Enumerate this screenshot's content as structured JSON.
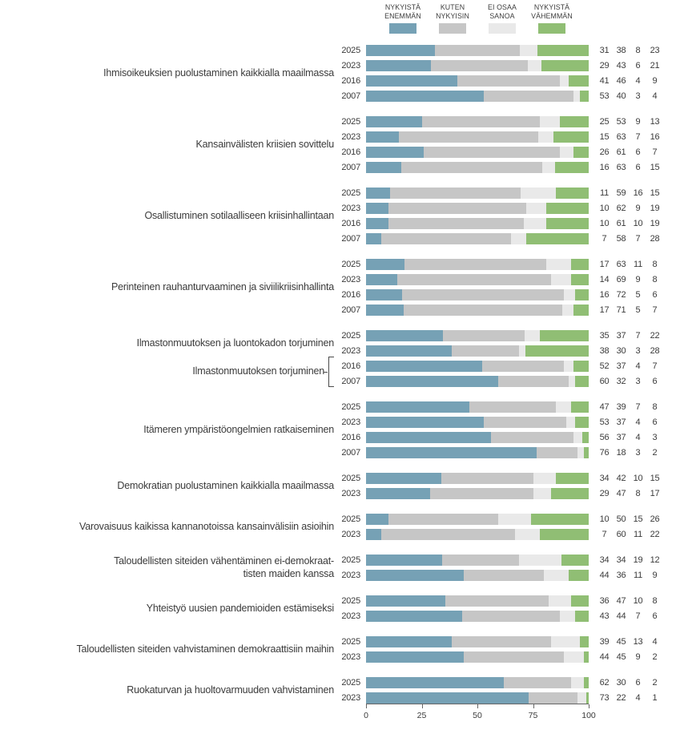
{
  "legend": {
    "items": [
      {
        "label": "NYKYISTÄ\nENEMMÄN",
        "color": "#76a1b5"
      },
      {
        "label": "KUTEN\nNYKYISIN",
        "color": "#c6c6c6"
      },
      {
        "label": "EI OSAA\nSANOA",
        "color": "#e9e9e9"
      },
      {
        "label": "NYKYISTÄ\nVÄHEMMÄN",
        "color": "#90be74"
      }
    ]
  },
  "axis": {
    "ticks": [
      0,
      25,
      50,
      75,
      100
    ]
  },
  "chart_data": {
    "type": "bar",
    "stacked": true,
    "orientation": "horizontal",
    "xlim": [
      0,
      100
    ],
    "series": [
      "NYKYISTÄ ENEMMÄN",
      "KUTEN NYKYISIN",
      "EI OSAA SANOA",
      "NYKYISTÄ VÄHEMMÄN"
    ],
    "segment_keys": [
      "nykyista-enemman",
      "kuten-nykyisin",
      "ei-osaa-sanoa",
      "nykyista-vahemman"
    ],
    "segment_colors": [
      "#76a1b5",
      "#c6c6c6",
      "#e9e9e9",
      "#90be74"
    ],
    "groups": [
      {
        "label": "Ihmisoikeuksien puolustaminen kaikkialla maailmassa",
        "rows": [
          {
            "year": "2025",
            "values": [
              31,
              38,
              8,
              23
            ]
          },
          {
            "year": "2023",
            "values": [
              29,
              43,
              6,
              21
            ]
          },
          {
            "year": "2016",
            "values": [
              41,
              46,
              4,
              9
            ]
          },
          {
            "year": "2007",
            "values": [
              53,
              40,
              3,
              4
            ]
          }
        ]
      },
      {
        "label": "Kansainvälisten kriisien sovittelu",
        "rows": [
          {
            "year": "2025",
            "values": [
              25,
              53,
              9,
              13
            ]
          },
          {
            "year": "2023",
            "values": [
              15,
              63,
              7,
              16
            ]
          },
          {
            "year": "2016",
            "values": [
              26,
              61,
              6,
              7
            ]
          },
          {
            "year": "2007",
            "values": [
              16,
              63,
              6,
              15
            ]
          }
        ]
      },
      {
        "label": "Osallistuminen sotilaalliseen kriisinhallintaan",
        "rows": [
          {
            "year": "2025",
            "values": [
              11,
              59,
              16,
              15
            ]
          },
          {
            "year": "2023",
            "values": [
              10,
              62,
              9,
              19
            ]
          },
          {
            "year": "2016",
            "values": [
              10,
              61,
              10,
              19
            ]
          },
          {
            "year": "2007",
            "values": [
              7,
              58,
              7,
              28
            ]
          }
        ]
      },
      {
        "label": "Perinteinen rauhanturvaaminen ja siviilikriisinhallinta",
        "rows": [
          {
            "year": "2025",
            "values": [
              17,
              63,
              11,
              8
            ]
          },
          {
            "year": "2023",
            "values": [
              14,
              69,
              9,
              8
            ]
          },
          {
            "year": "2016",
            "values": [
              16,
              72,
              5,
              6
            ]
          },
          {
            "year": "2007",
            "values": [
              17,
              71,
              5,
              7
            ]
          }
        ]
      },
      {
        "label": "Ilmastonmuutoksen ja luontokadon torjuminen",
        "sub_label": "Ilmastonmuutoksen torjuminen",
        "rows": [
          {
            "year": "2025",
            "values": [
              35,
              37,
              7,
              22
            ]
          },
          {
            "year": "2023",
            "values": [
              38,
              30,
              3,
              28
            ]
          },
          {
            "year": "2016",
            "values": [
              52,
              37,
              4,
              7
            ]
          },
          {
            "year": "2007",
            "values": [
              60,
              32,
              3,
              6
            ]
          }
        ]
      },
      {
        "label": "Itämeren ympäristöongelmien ratkaiseminen",
        "rows": [
          {
            "year": "2025",
            "values": [
              47,
              39,
              7,
              8
            ]
          },
          {
            "year": "2023",
            "values": [
              53,
              37,
              4,
              6
            ]
          },
          {
            "year": "2016",
            "values": [
              56,
              37,
              4,
              3
            ]
          },
          {
            "year": "2007",
            "values": [
              76,
              18,
              3,
              2
            ]
          }
        ]
      },
      {
        "label": "Demokratian puolustaminen kaikkialla maailmassa",
        "rows": [
          {
            "year": "2025",
            "values": [
              34,
              42,
              10,
              15
            ]
          },
          {
            "year": "2023",
            "values": [
              29,
              47,
              8,
              17
            ]
          }
        ]
      },
      {
        "label": "Varovaisuus kaikissa kannanotoissa kansainvälisiin asioihin",
        "rows": [
          {
            "year": "2025",
            "values": [
              10,
              50,
              15,
              26
            ]
          },
          {
            "year": "2023",
            "values": [
              7,
              60,
              11,
              22
            ]
          }
        ]
      },
      {
        "label": "Taloudellisten siteiden vähentäminen ei-demokraat-\ntisten maiden kanssa",
        "rows": [
          {
            "year": "2025",
            "values": [
              34,
              34,
              19,
              12
            ]
          },
          {
            "year": "2023",
            "values": [
              44,
              36,
              11,
              9
            ]
          }
        ]
      },
      {
        "label": "Yhteistyö uusien pandemioiden estämiseksi",
        "rows": [
          {
            "year": "2025",
            "values": [
              36,
              47,
              10,
              8
            ]
          },
          {
            "year": "2023",
            "values": [
              43,
              44,
              7,
              6
            ]
          }
        ]
      },
      {
        "label": "Taloudellisten siteiden vahvistaminen demokraattisiin maihin",
        "rows": [
          {
            "year": "2025",
            "values": [
              39,
              45,
              13,
              4
            ]
          },
          {
            "year": "2023",
            "values": [
              44,
              45,
              9,
              2
            ]
          }
        ]
      },
      {
        "label": "Ruokaturvan ja huoltovarmuuden vahvistaminen",
        "rows": [
          {
            "year": "2025",
            "values": [
              62,
              30,
              6,
              2
            ]
          },
          {
            "year": "2023",
            "values": [
              73,
              22,
              4,
              1
            ]
          }
        ]
      }
    ]
  }
}
